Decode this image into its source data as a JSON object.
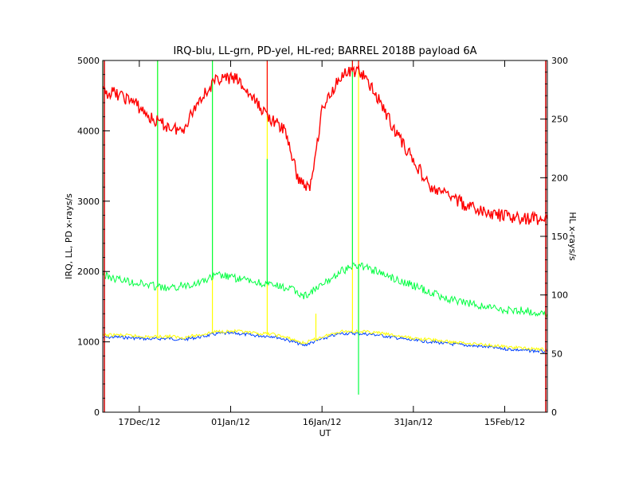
{
  "chart_data": {
    "type": "line",
    "title": "IRQ-blu, LL-grn, PD-yel, HL-red; BARREL 2018B payload 6A",
    "xlabel": "UT",
    "ylabel": "IRQ, LL, PD x-rays/s",
    "y2label": "HL x-rays/s",
    "grid": false,
    "xlim": [
      "2011-12-11",
      "2012-02-22"
    ],
    "ylim": [
      0,
      5000
    ],
    "y2lim": [
      0,
      300
    ],
    "x_ticks": [
      {
        "date": "2011-12-17",
        "label": "17Dec/12"
      },
      {
        "date": "2012-01-01",
        "label": "01Jan/12"
      },
      {
        "date": "2012-01-16",
        "label": "16Jan/12"
      },
      {
        "date": "2012-01-31",
        "label": "31Jan/12"
      },
      {
        "date": "2012-02-15",
        "label": "15Feb/12"
      }
    ],
    "y_ticks": [
      0,
      1000,
      2000,
      3000,
      4000,
      5000
    ],
    "y2_ticks": [
      0,
      50,
      100,
      150,
      200,
      250,
      300
    ],
    "series": [
      {
        "key": "IRQ",
        "axis": "left",
        "color": "#0040ff",
        "x": [
          "2011-12-11",
          "2011-12-13",
          "2011-12-16",
          "2011-12-19",
          "2011-12-22",
          "2011-12-24",
          "2011-12-27",
          "2011-12-30",
          "2012-01-02",
          "2012-01-05",
          "2012-01-08",
          "2012-01-11",
          "2012-01-13",
          "2012-01-16",
          "2012-01-19",
          "2012-01-22",
          "2012-01-25",
          "2012-01-28",
          "2012-01-31",
          "2012-02-03",
          "2012-02-06",
          "2012-02-09",
          "2012-02-12",
          "2012-02-15",
          "2012-02-18",
          "2012-02-22"
        ],
        "values": [
          1060,
          1070,
          1055,
          1040,
          1050,
          1030,
          1070,
          1120,
          1120,
          1090,
          1080,
          1010,
          950,
          1040,
          1120,
          1120,
          1100,
          1060,
          1020,
          1000,
          970,
          950,
          930,
          900,
          880,
          860
        ]
      },
      {
        "key": "PD",
        "axis": "left",
        "color": "#ffff00",
        "x": [
          "2011-12-11",
          "2011-12-13",
          "2011-12-16",
          "2011-12-19",
          "2011-12-22",
          "2011-12-24",
          "2011-12-27",
          "2011-12-30",
          "2012-01-02",
          "2012-01-05",
          "2012-01-08",
          "2012-01-11",
          "2012-01-13",
          "2012-01-16",
          "2012-01-19",
          "2012-01-22",
          "2012-01-25",
          "2012-01-28",
          "2012-01-31",
          "2012-02-03",
          "2012-02-06",
          "2012-02-09",
          "2012-02-12",
          "2012-02-15",
          "2012-02-18",
          "2012-02-22"
        ],
        "values": [
          1090,
          1100,
          1085,
          1070,
          1080,
          1060,
          1100,
          1150,
          1150,
          1120,
          1110,
          1040,
          980,
          1070,
          1150,
          1150,
          1130,
          1090,
          1050,
          1030,
          1000,
          980,
          960,
          930,
          910,
          890
        ],
        "spikes": [
          {
            "x": "2011-12-20",
            "value": 5000
          },
          {
            "x": "2011-12-29",
            "value": 5000
          },
          {
            "x": "2012-01-07",
            "value": 5000
          },
          {
            "x": "2012-01-15",
            "value": 1400
          },
          {
            "x": "2012-01-21",
            "value": 5000
          },
          {
            "x": "2012-01-22",
            "value": 5000
          }
        ]
      },
      {
        "key": "LL",
        "axis": "left",
        "color": "#00ff40",
        "x": [
          "2011-12-11",
          "2011-12-13",
          "2011-12-16",
          "2011-12-19",
          "2011-12-22",
          "2011-12-24",
          "2011-12-27",
          "2011-12-30",
          "2012-01-02",
          "2012-01-05",
          "2012-01-08",
          "2012-01-11",
          "2012-01-13",
          "2012-01-16",
          "2012-01-19",
          "2012-01-22",
          "2012-01-25",
          "2012-01-28",
          "2012-01-31",
          "2012-02-03",
          "2012-02-06",
          "2012-02-09",
          "2012-02-12",
          "2012-02-15",
          "2012-02-18",
          "2012-02-22"
        ],
        "values": [
          1950,
          1900,
          1850,
          1800,
          1750,
          1800,
          1850,
          1950,
          1900,
          1850,
          1800,
          1750,
          1650,
          1800,
          2000,
          2100,
          2000,
          1900,
          1800,
          1700,
          1600,
          1550,
          1500,
          1450,
          1450,
          1400
        ],
        "spikes": [
          {
            "x": "2011-12-11",
            "value": 5000
          },
          {
            "x": "2011-12-20",
            "value": 5000
          },
          {
            "x": "2011-12-29",
            "value": 5000
          },
          {
            "x": "2012-01-07",
            "value": 3600
          },
          {
            "x": "2012-01-21",
            "value": 5000
          },
          {
            "x": "2012-01-22",
            "value": 250
          }
        ]
      },
      {
        "key": "HL",
        "axis": "right",
        "color": "#ff0000",
        "x": [
          "2011-12-11",
          "2011-12-13",
          "2011-12-16",
          "2011-12-19",
          "2011-12-21",
          "2011-12-24",
          "2011-12-27",
          "2011-12-30",
          "2012-01-02",
          "2012-01-05",
          "2012-01-08",
          "2012-01-10",
          "2012-01-12",
          "2012-01-14",
          "2012-01-16",
          "2012-01-19",
          "2012-01-22",
          "2012-01-25",
          "2012-01-28",
          "2012-01-31",
          "2012-02-03",
          "2012-02-06",
          "2012-02-09",
          "2012-02-12",
          "2012-02-15",
          "2012-02-18",
          "2012-02-22"
        ],
        "values": [
          273,
          272,
          265,
          250,
          245,
          240,
          268,
          285,
          284,
          265,
          248,
          240,
          200,
          190,
          258,
          287,
          292,
          270,
          240,
          215,
          190,
          185,
          175,
          170,
          167,
          165,
          165
        ],
        "spikes": [
          {
            "x": "2012-01-07",
            "value": 300
          },
          {
            "x": "2012-01-21",
            "value": 300
          },
          {
            "x": "2012-01-22",
            "value": 300
          }
        ]
      }
    ]
  }
}
